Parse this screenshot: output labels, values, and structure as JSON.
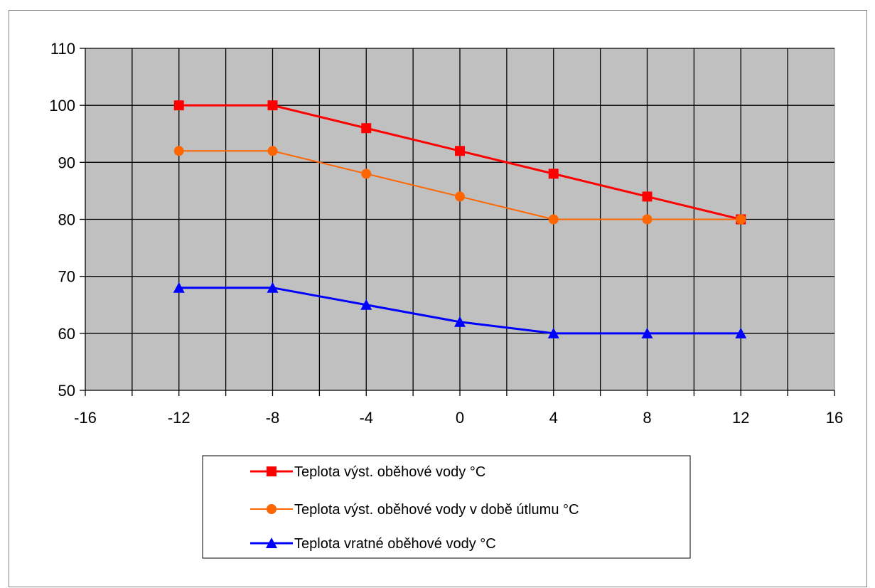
{
  "chart_data": {
    "type": "line",
    "xlim": [
      -16,
      16
    ],
    "ylim": [
      50,
      110
    ],
    "x_ticks": [
      "-16",
      "-12",
      "-8",
      "-4",
      "0",
      "4",
      "8",
      "12",
      "16"
    ],
    "y_ticks": [
      "50",
      "60",
      "70",
      "80",
      "90",
      "100",
      "110"
    ],
    "grid": true,
    "legend_position": "bottom",
    "plot_background": "#C0C0C0",
    "series": [
      {
        "name": "Teplota výst. oběhové vody °C",
        "color": "#FF0000",
        "marker": "square",
        "x": [
          -12,
          -8,
          -4,
          0,
          4,
          8,
          12
        ],
        "y": [
          100,
          100,
          96,
          92,
          88,
          84,
          80
        ]
      },
      {
        "name": "Teplota výst. oběhové vody v době útlumu °C",
        "color": "#FF6600",
        "marker": "circle",
        "x": [
          -12,
          -8,
          -4,
          0,
          4,
          8,
          12
        ],
        "y": [
          92,
          92,
          88,
          84,
          80,
          80,
          80
        ]
      },
      {
        "name": "Teplota vratné oběhové vody °C",
        "color": "#0000FF",
        "marker": "triangle",
        "x": [
          -12,
          -8,
          -4,
          0,
          4,
          8,
          12
        ],
        "y": [
          68,
          68,
          65,
          62,
          60,
          60,
          60
        ]
      }
    ]
  }
}
